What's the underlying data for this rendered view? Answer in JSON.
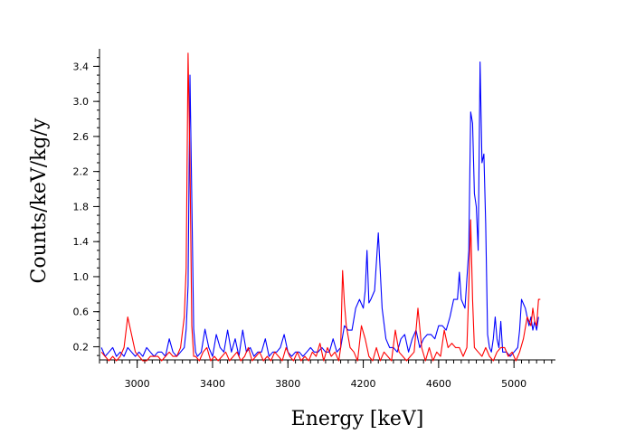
{
  "chart_data": {
    "type": "line",
    "xlabel": "Energy [keV]",
    "ylabel": "Counts/keV/kg/y",
    "xlim": [
      2800,
      5220
    ],
    "ylim": [
      0.05,
      3.6
    ],
    "x_ticks": [
      3000,
      3400,
      3800,
      4200,
      4600,
      5000
    ],
    "y_ticks": [
      0.2,
      0.6,
      1.0,
      1.4,
      1.8,
      2.2,
      2.6,
      3.0,
      3.4
    ],
    "x_tick_labels": [
      "3000",
      "3400",
      "3800",
      "4200",
      "4600",
      "5000"
    ],
    "y_tick_labels": [
      "0.2",
      "0.6",
      "1.0",
      "1.4",
      "1.8",
      "2.2",
      "2.6",
      "3.0",
      "3.4"
    ],
    "grid": false,
    "series": [
      {
        "color": "#0000ff",
        "points": [
          [
            2810,
            0.19
          ],
          [
            2830,
            0.09
          ],
          [
            2850,
            0.14
          ],
          [
            2870,
            0.19
          ],
          [
            2890,
            0.09
          ],
          [
            2910,
            0.14
          ],
          [
            2930,
            0.09
          ],
          [
            2950,
            0.19
          ],
          [
            2970,
            0.14
          ],
          [
            2990,
            0.09
          ],
          [
            3010,
            0.14
          ],
          [
            3030,
            0.09
          ],
          [
            3050,
            0.19
          ],
          [
            3070,
            0.14
          ],
          [
            3090,
            0.09
          ],
          [
            3110,
            0.14
          ],
          [
            3130,
            0.14
          ],
          [
            3150,
            0.09
          ],
          [
            3170,
            0.29
          ],
          [
            3190,
            0.14
          ],
          [
            3210,
            0.09
          ],
          [
            3230,
            0.14
          ],
          [
            3250,
            0.19
          ],
          [
            3260,
            0.4
          ],
          [
            3270,
            0.9
          ],
          [
            3280,
            3.3
          ],
          [
            3290,
            1.9
          ],
          [
            3300,
            0.4
          ],
          [
            3310,
            0.14
          ],
          [
            3320,
            0.09
          ],
          [
            3340,
            0.14
          ],
          [
            3360,
            0.4
          ],
          [
            3380,
            0.19
          ],
          [
            3400,
            0.09
          ],
          [
            3420,
            0.34
          ],
          [
            3440,
            0.19
          ],
          [
            3460,
            0.14
          ],
          [
            3480,
            0.39
          ],
          [
            3500,
            0.14
          ],
          [
            3520,
            0.29
          ],
          [
            3540,
            0.09
          ],
          [
            3560,
            0.39
          ],
          [
            3580,
            0.14
          ],
          [
            3600,
            0.19
          ],
          [
            3620,
            0.09
          ],
          [
            3640,
            0.14
          ],
          [
            3660,
            0.14
          ],
          [
            3680,
            0.29
          ],
          [
            3700,
            0.09
          ],
          [
            3720,
            0.14
          ],
          [
            3740,
            0.14
          ],
          [
            3760,
            0.19
          ],
          [
            3780,
            0.34
          ],
          [
            3800,
            0.14
          ],
          [
            3820,
            0.09
          ],
          [
            3840,
            0.14
          ],
          [
            3860,
            0.14
          ],
          [
            3880,
            0.09
          ],
          [
            3900,
            0.14
          ],
          [
            3920,
            0.19
          ],
          [
            3940,
            0.14
          ],
          [
            3960,
            0.14
          ],
          [
            3980,
            0.19
          ],
          [
            4000,
            0.14
          ],
          [
            4020,
            0.14
          ],
          [
            4040,
            0.29
          ],
          [
            4060,
            0.14
          ],
          [
            4080,
            0.19
          ],
          [
            4100,
            0.44
          ],
          [
            4120,
            0.39
          ],
          [
            4140,
            0.39
          ],
          [
            4160,
            0.64
          ],
          [
            4180,
            0.74
          ],
          [
            4200,
            0.64
          ],
          [
            4210,
            0.84
          ],
          [
            4220,
            1.3
          ],
          [
            4230,
            0.7
          ],
          [
            4240,
            0.74
          ],
          [
            4260,
            0.84
          ],
          [
            4280,
            1.5
          ],
          [
            4300,
            0.64
          ],
          [
            4320,
            0.29
          ],
          [
            4340,
            0.19
          ],
          [
            4360,
            0.19
          ],
          [
            4380,
            0.14
          ],
          [
            4400,
            0.29
          ],
          [
            4420,
            0.34
          ],
          [
            4440,
            0.14
          ],
          [
            4460,
            0.29
          ],
          [
            4480,
            0.39
          ],
          [
            4500,
            0.19
          ],
          [
            4520,
            0.29
          ],
          [
            4540,
            0.34
          ],
          [
            4560,
            0.34
          ],
          [
            4580,
            0.29
          ],
          [
            4600,
            0.44
          ],
          [
            4620,
            0.44
          ],
          [
            4640,
            0.39
          ],
          [
            4660,
            0.54
          ],
          [
            4680,
            0.74
          ],
          [
            4700,
            0.74
          ],
          [
            4710,
            1.05
          ],
          [
            4720,
            0.74
          ],
          [
            4740,
            0.64
          ],
          [
            4760,
            1.3
          ],
          [
            4770,
            2.88
          ],
          [
            4780,
            2.75
          ],
          [
            4790,
            1.95
          ],
          [
            4800,
            1.8
          ],
          [
            4810,
            1.3
          ],
          [
            4820,
            3.45
          ],
          [
            4830,
            2.3
          ],
          [
            4840,
            2.4
          ],
          [
            4850,
            1.6
          ],
          [
            4860,
            0.34
          ],
          [
            4870,
            0.19
          ],
          [
            4880,
            0.14
          ],
          [
            4890,
            0.29
          ],
          [
            4900,
            0.54
          ],
          [
            4910,
            0.29
          ],
          [
            4920,
            0.19
          ],
          [
            4930,
            0.49
          ],
          [
            4940,
            0.14
          ],
          [
            4960,
            0.14
          ],
          [
            4980,
            0.09
          ],
          [
            5000,
            0.14
          ],
          [
            5020,
            0.19
          ],
          [
            5030,
            0.39
          ],
          [
            5040,
            0.74
          ],
          [
            5060,
            0.64
          ],
          [
            5080,
            0.44
          ],
          [
            5090,
            0.54
          ],
          [
            5100,
            0.39
          ],
          [
            5110,
            0.49
          ],
          [
            5120,
            0.39
          ],
          [
            5130,
            0.54
          ]
        ]
      },
      {
        "color": "#ff0000",
        "points": [
          [
            2810,
            0.14
          ],
          [
            2830,
            0.09
          ],
          [
            2850,
            0.04
          ],
          [
            2870,
            0.09
          ],
          [
            2890,
            0.04
          ],
          [
            2910,
            0.09
          ],
          [
            2930,
            0.19
          ],
          [
            2950,
            0.54
          ],
          [
            2970,
            0.34
          ],
          [
            2990,
            0.14
          ],
          [
            3010,
            0.09
          ],
          [
            3030,
            0.04
          ],
          [
            3050,
            0.04
          ],
          [
            3070,
            0.09
          ],
          [
            3090,
            0.09
          ],
          [
            3110,
            0.09
          ],
          [
            3130,
            0.04
          ],
          [
            3150,
            0.09
          ],
          [
            3170,
            0.14
          ],
          [
            3190,
            0.09
          ],
          [
            3210,
            0.09
          ],
          [
            3230,
            0.19
          ],
          [
            3250,
            0.54
          ],
          [
            3260,
            1.1
          ],
          [
            3270,
            3.55
          ],
          [
            3280,
            2.3
          ],
          [
            3290,
            0.44
          ],
          [
            3300,
            0.09
          ],
          [
            3310,
            0.09
          ],
          [
            3330,
            0.04
          ],
          [
            3350,
            0.14
          ],
          [
            3370,
            0.19
          ],
          [
            3390,
            0.04
          ],
          [
            3410,
            0.09
          ],
          [
            3430,
            0.04
          ],
          [
            3450,
            0.09
          ],
          [
            3470,
            0.14
          ],
          [
            3490,
            0.04
          ],
          [
            3510,
            0.09
          ],
          [
            3530,
            0.14
          ],
          [
            3550,
            0.04
          ],
          [
            3570,
            0.09
          ],
          [
            3590,
            0.19
          ],
          [
            3610,
            0.04
          ],
          [
            3630,
            0.09
          ],
          [
            3650,
            0.14
          ],
          [
            3670,
            0.04
          ],
          [
            3690,
            0.09
          ],
          [
            3710,
            0.04
          ],
          [
            3730,
            0.14
          ],
          [
            3750,
            0.09
          ],
          [
            3770,
            0.04
          ],
          [
            3790,
            0.19
          ],
          [
            3810,
            0.09
          ],
          [
            3830,
            0.04
          ],
          [
            3850,
            0.14
          ],
          [
            3870,
            0.04
          ],
          [
            3890,
            0.09
          ],
          [
            3910,
            0.04
          ],
          [
            3930,
            0.14
          ],
          [
            3950,
            0.09
          ],
          [
            3970,
            0.24
          ],
          [
            3990,
            0.04
          ],
          [
            4010,
            0.19
          ],
          [
            4030,
            0.09
          ],
          [
            4050,
            0.14
          ],
          [
            4070,
            0.04
          ],
          [
            4080,
            0.19
          ],
          [
            4090,
            1.07
          ],
          [
            4100,
            0.7
          ],
          [
            4110,
            0.44
          ],
          [
            4130,
            0.19
          ],
          [
            4150,
            0.14
          ],
          [
            4170,
            0.04
          ],
          [
            4190,
            0.44
          ],
          [
            4210,
            0.29
          ],
          [
            4230,
            0.09
          ],
          [
            4250,
            0.04
          ],
          [
            4270,
            0.19
          ],
          [
            4290,
            0.04
          ],
          [
            4310,
            0.14
          ],
          [
            4330,
            0.09
          ],
          [
            4350,
            0.04
          ],
          [
            4370,
            0.39
          ],
          [
            4390,
            0.14
          ],
          [
            4410,
            0.09
          ],
          [
            4430,
            0.04
          ],
          [
            4450,
            0.09
          ],
          [
            4470,
            0.14
          ],
          [
            4490,
            0.64
          ],
          [
            4510,
            0.19
          ],
          [
            4530,
            0.04
          ],
          [
            4550,
            0.19
          ],
          [
            4570,
            0.04
          ],
          [
            4590,
            0.14
          ],
          [
            4610,
            0.09
          ],
          [
            4630,
            0.39
          ],
          [
            4650,
            0.19
          ],
          [
            4670,
            0.24
          ],
          [
            4690,
            0.19
          ],
          [
            4710,
            0.19
          ],
          [
            4730,
            0.09
          ],
          [
            4750,
            0.19
          ],
          [
            4760,
            0.84
          ],
          [
            4770,
            1.65
          ],
          [
            4780,
            0.74
          ],
          [
            4790,
            0.19
          ],
          [
            4810,
            0.14
          ],
          [
            4830,
            0.09
          ],
          [
            4850,
            0.19
          ],
          [
            4870,
            0.09
          ],
          [
            4890,
            0.04
          ],
          [
            4910,
            0.14
          ],
          [
            4930,
            0.19
          ],
          [
            4950,
            0.19
          ],
          [
            4970,
            0.09
          ],
          [
            4990,
            0.14
          ],
          [
            5010,
            0.04
          ],
          [
            5030,
            0.14
          ],
          [
            5050,
            0.29
          ],
          [
            5070,
            0.54
          ],
          [
            5090,
            0.44
          ],
          [
            5100,
            0.64
          ],
          [
            5110,
            0.49
          ],
          [
            5120,
            0.44
          ],
          [
            5130,
            0.74
          ],
          [
            5140,
            0.74
          ]
        ]
      }
    ]
  }
}
